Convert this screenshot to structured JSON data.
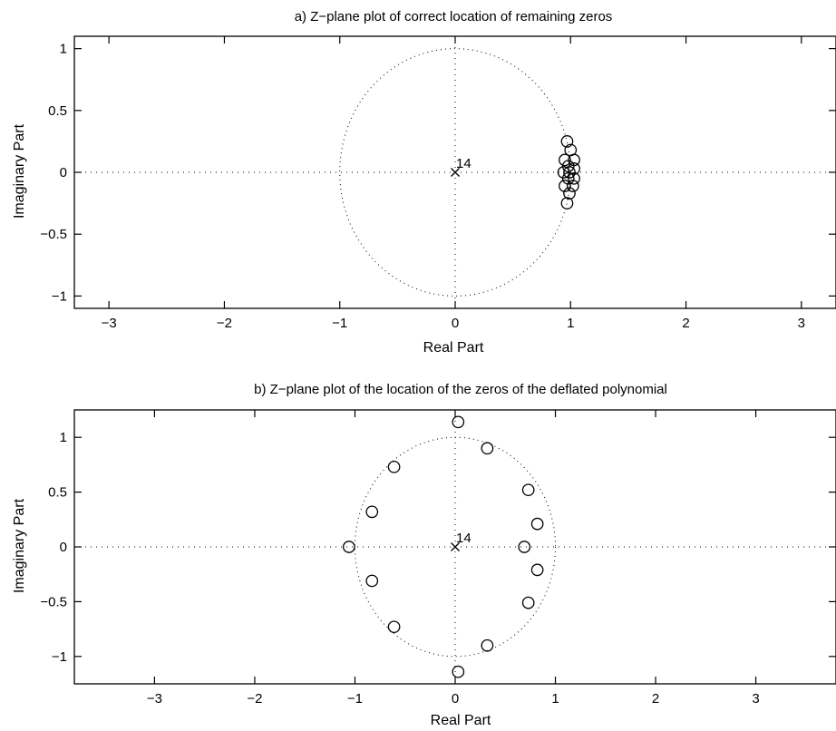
{
  "chart_data": [
    {
      "type": "scatter",
      "title": "a) Z−plane plot of correct location of remaining zeros",
      "xlabel": "Real Part",
      "ylabel": "Imaginary Part",
      "xlim": [
        -3.3,
        3.3
      ],
      "ylim": [
        -1.1,
        1.1
      ],
      "xticks": [
        -3,
        -2,
        -1,
        0,
        1,
        2,
        3
      ],
      "xtick_labels": [
        "−3",
        "−2",
        "−1",
        "0",
        "1",
        "2",
        "3"
      ],
      "yticks": [
        1,
        0.5,
        0,
        -0.5,
        -1
      ],
      "ytick_labels": [
        "1",
        "0.5",
        "0",
        "−0.5",
        "−1"
      ],
      "unit_circle": true,
      "axes_dotted": true,
      "poles": [
        {
          "x": 0,
          "y": 0,
          "multiplicity_label": "14"
        }
      ],
      "zeros": [
        {
          "x": 0.97,
          "y": 0.25
        },
        {
          "x": 1.0,
          "y": 0.18
        },
        {
          "x": 1.03,
          "y": 0.1
        },
        {
          "x": 1.03,
          "y": 0.03
        },
        {
          "x": 1.03,
          "y": -0.05
        },
        {
          "x": 1.02,
          "y": -0.11
        },
        {
          "x": 0.99,
          "y": -0.17
        },
        {
          "x": 0.97,
          "y": -0.25
        },
        {
          "x": 0.95,
          "y": -0.11
        },
        {
          "x": 0.95,
          "y": 0.1
        },
        {
          "x": 0.94,
          "y": 0.0
        },
        {
          "x": 0.98,
          "y": 0.05
        },
        {
          "x": 0.98,
          "y": -0.05
        },
        {
          "x": 0.99,
          "y": 0.0
        }
      ]
    },
    {
      "type": "scatter",
      "title": "b) Z−plane plot of the location of the zeros of the deflated polynomial",
      "xlabel": "Real Part",
      "ylabel": "Imaginary Part",
      "xlim": [
        -3.8,
        3.8
      ],
      "ylim": [
        -1.25,
        1.25
      ],
      "xticks": [
        -3,
        -2,
        -1,
        0,
        1,
        2,
        3
      ],
      "xtick_labels": [
        "−3",
        "−2",
        "−1",
        "0",
        "1",
        "2",
        "3"
      ],
      "yticks": [
        1,
        0.5,
        0,
        -0.5,
        -1
      ],
      "ytick_labels": [
        "1",
        "0.5",
        "0",
        "−0.5",
        "−1"
      ],
      "unit_circle": true,
      "axes_dotted": true,
      "poles": [
        {
          "x": 0,
          "y": 0,
          "multiplicity_label": "14"
        }
      ],
      "zeros": [
        {
          "x": 0.03,
          "y": 1.14
        },
        {
          "x": 0.32,
          "y": 0.9
        },
        {
          "x": 0.73,
          "y": 0.52
        },
        {
          "x": 0.82,
          "y": 0.21
        },
        {
          "x": 0.69,
          "y": 0.0
        },
        {
          "x": 0.82,
          "y": -0.21
        },
        {
          "x": 0.73,
          "y": -0.51
        },
        {
          "x": 0.32,
          "y": -0.9
        },
        {
          "x": 0.03,
          "y": -1.14
        },
        {
          "x": -0.61,
          "y": -0.73
        },
        {
          "x": -0.83,
          "y": -0.31
        },
        {
          "x": -1.06,
          "y": 0.0
        },
        {
          "x": -0.83,
          "y": 0.32
        },
        {
          "x": -0.61,
          "y": 0.73
        }
      ]
    }
  ]
}
